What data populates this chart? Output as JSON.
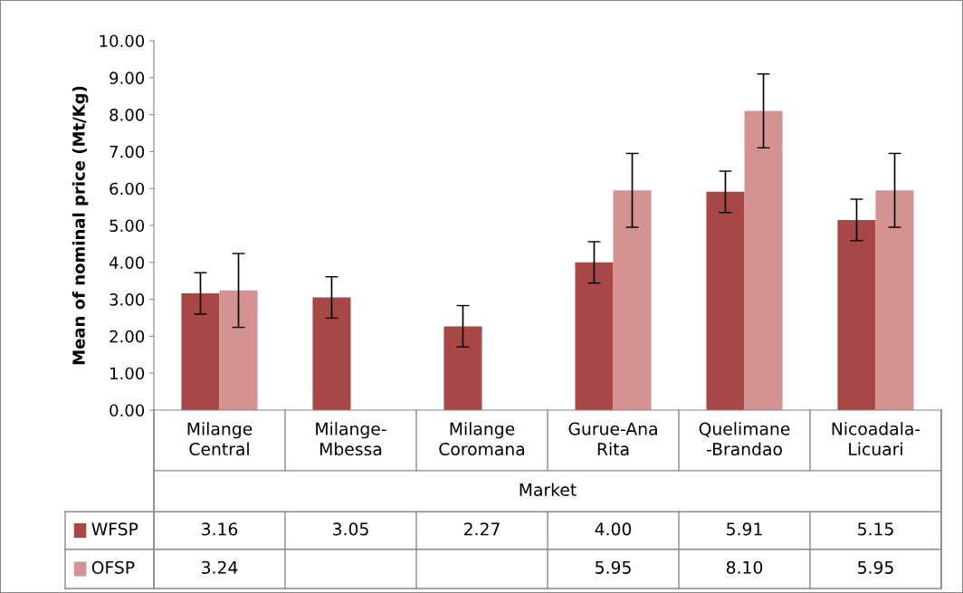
{
  "chart_data": {
    "type": "bar",
    "ylabel": "Mean of nominal price (Mt/Kg)",
    "xlabel": "Market",
    "categories": [
      "Milange\nCentral",
      "Milange-\nMbessa",
      "Milange\nCoromana",
      "Gurue-Ana\nRita",
      "Quelimane\n-Brandao",
      "Nicoadala-\nLicuari"
    ],
    "series": [
      {
        "name": "WFSP",
        "color": "#a84846",
        "values": [
          3.16,
          3.05,
          2.27,
          4.0,
          5.91,
          5.15
        ],
        "errors": [
          0.56,
          0.56,
          0.56,
          0.56,
          0.56,
          0.56
        ],
        "value_labels": [
          "3.16",
          "3.05",
          "2.27",
          "4.00",
          "5.91",
          "5.15"
        ]
      },
      {
        "name": "OFSP",
        "color": "#d49391",
        "values": [
          3.24,
          null,
          null,
          5.95,
          8.1,
          5.95
        ],
        "errors": [
          1.0,
          null,
          null,
          1.0,
          1.0,
          1.0
        ],
        "value_labels": [
          "3.24",
          null,
          null,
          "5.95",
          "8.10",
          "5.95"
        ]
      }
    ],
    "ylim": [
      0,
      10
    ],
    "yticks": [
      {
        "value": 0,
        "label": "0.00"
      },
      {
        "value": 1,
        "label": "1.00"
      },
      {
        "value": 2,
        "label": "2.00"
      },
      {
        "value": 3,
        "label": "3.00"
      },
      {
        "value": 4,
        "label": "4.00"
      },
      {
        "value": 5,
        "label": "5.00"
      },
      {
        "value": 6,
        "label": "6.00"
      },
      {
        "value": 7,
        "label": "7.00"
      },
      {
        "value": 8,
        "label": "8.00"
      },
      {
        "value": 9,
        "label": "9.00"
      },
      {
        "value": 10,
        "label": "10.00"
      }
    ],
    "grid": false,
    "legend": "bottom"
  }
}
